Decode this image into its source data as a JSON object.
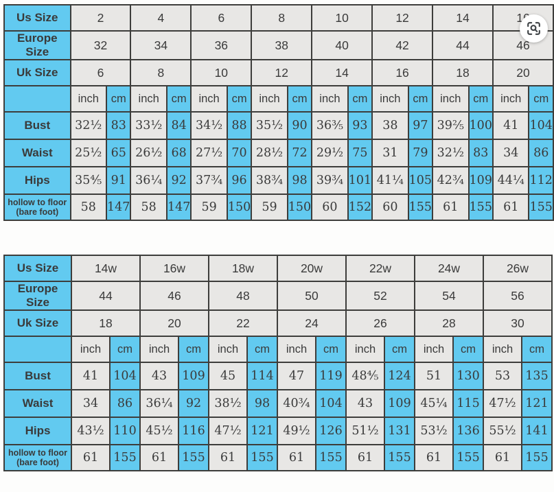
{
  "colors": {
    "header_blue": "#62caf0",
    "cell_gray": "#e8e7e5",
    "border": "#3d3d3b",
    "text": "#3a3a3a"
  },
  "lens": {
    "icon": "search-lens-icon"
  },
  "tables": [
    {
      "id": "standard-sizes",
      "size_rows": [
        {
          "label": "Us Size",
          "values": [
            "2",
            "4",
            "6",
            "8",
            "10",
            "12",
            "14",
            "16"
          ]
        },
        {
          "label": "Europe Size",
          "values": [
            "32",
            "34",
            "36",
            "38",
            "40",
            "42",
            "44",
            "46"
          ]
        },
        {
          "label": "Uk Size",
          "values": [
            "6",
            "8",
            "10",
            "12",
            "14",
            "16",
            "18",
            "20"
          ]
        }
      ],
      "units": {
        "inch": "inch",
        "cm": "cm"
      },
      "measure_rows": [
        {
          "label": "Bust",
          "pairs": [
            [
              "32½",
              "83"
            ],
            [
              "33½",
              "84"
            ],
            [
              "34½",
              "88"
            ],
            [
              "35½",
              "90"
            ],
            [
              "36⅗",
              "93"
            ],
            [
              "38",
              "97"
            ],
            [
              "39⅖",
              "100"
            ],
            [
              "41",
              "104"
            ]
          ]
        },
        {
          "label": "Waist",
          "pairs": [
            [
              "25½",
              "65"
            ],
            [
              "26½",
              "68"
            ],
            [
              "27½",
              "70"
            ],
            [
              "28½",
              "72"
            ],
            [
              "29½",
              "75"
            ],
            [
              "31",
              "79"
            ],
            [
              "32½",
              "83"
            ],
            [
              "34",
              "86"
            ]
          ]
        },
        {
          "label": "Hips",
          "pairs": [
            [
              "35⅘",
              "91"
            ],
            [
              "36¼",
              "92"
            ],
            [
              "37¾",
              "96"
            ],
            [
              "38¾",
              "98"
            ],
            [
              "39¾",
              "101"
            ],
            [
              "41¼",
              "105"
            ],
            [
              "42¾",
              "109"
            ],
            [
              "44¼",
              "112"
            ]
          ]
        },
        {
          "label": "hollow to floor (bare foot)",
          "small": true,
          "pairs": [
            [
              "58",
              "147"
            ],
            [
              "58",
              "147"
            ],
            [
              "59",
              "150"
            ],
            [
              "59",
              "150"
            ],
            [
              "60",
              "152"
            ],
            [
              "60",
              "155"
            ],
            [
              "61",
              "155"
            ],
            [
              "61",
              "155"
            ]
          ]
        }
      ]
    },
    {
      "id": "plus-sizes",
      "size_rows": [
        {
          "label": "Us Size",
          "values": [
            "14w",
            "16w",
            "18w",
            "20w",
            "22w",
            "24w",
            "26w"
          ]
        },
        {
          "label": "Europe Size",
          "values": [
            "44",
            "46",
            "48",
            "50",
            "52",
            "54",
            "56"
          ]
        },
        {
          "label": "Uk Size",
          "values": [
            "18",
            "20",
            "22",
            "24",
            "26",
            "28",
            "30"
          ]
        }
      ],
      "units": {
        "inch": "inch",
        "cm": "cm"
      },
      "measure_rows": [
        {
          "label": "Bust",
          "pairs": [
            [
              "41",
              "104"
            ],
            [
              "43",
              "109"
            ],
            [
              "45",
              "114"
            ],
            [
              "47",
              "119"
            ],
            [
              "48⅘",
              "124"
            ],
            [
              "51",
              "130"
            ],
            [
              "53",
              "135"
            ]
          ]
        },
        {
          "label": "Waist",
          "pairs": [
            [
              "34",
              "86"
            ],
            [
              "36¼",
              "92"
            ],
            [
              "38½",
              "98"
            ],
            [
              "40¾",
              "104"
            ],
            [
              "43",
              "109"
            ],
            [
              "45¼",
              "115"
            ],
            [
              "47½",
              "121"
            ]
          ]
        },
        {
          "label": "Hips",
          "pairs": [
            [
              "43½",
              "110"
            ],
            [
              "45½",
              "116"
            ],
            [
              "47½",
              "121"
            ],
            [
              "49½",
              "126"
            ],
            [
              "51½",
              "131"
            ],
            [
              "53½",
              "136"
            ],
            [
              "55½",
              "141"
            ]
          ]
        },
        {
          "label": "hollow to floor (bare foot)",
          "small": true,
          "pairs": [
            [
              "61",
              "155"
            ],
            [
              "61",
              "155"
            ],
            [
              "61",
              "155"
            ],
            [
              "61",
              "155"
            ],
            [
              "61",
              "155"
            ],
            [
              "61",
              "155"
            ],
            [
              "61",
              "155"
            ]
          ]
        }
      ]
    }
  ]
}
